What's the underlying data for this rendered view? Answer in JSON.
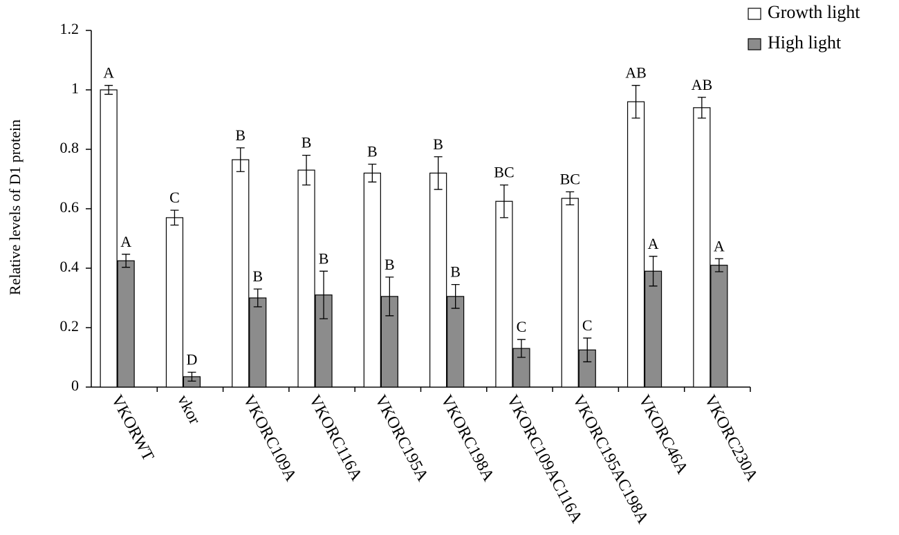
{
  "chart_data": {
    "type": "bar",
    "y_label": "Relative levels of D1 protein",
    "categories": [
      "VKORWT",
      "vkor",
      "VKORC109A",
      "VKORC116A",
      "VKORC195A",
      "VKORC198A",
      "VKORC109AC116A",
      "VKORC195AC198A",
      "VKORC46A",
      "VKORC230A"
    ],
    "series": [
      {
        "name": "Growth light",
        "color": "#ffffff",
        "values": [
          1.0,
          0.57,
          0.765,
          0.73,
          0.72,
          0.72,
          0.625,
          0.635,
          0.96,
          0.94
        ],
        "errors": [
          0.015,
          0.025,
          0.04,
          0.05,
          0.03,
          0.055,
          0.055,
          0.022,
          0.055,
          0.035
        ],
        "significance": [
          "A",
          "C",
          "B",
          "B",
          "B",
          "B",
          "BC",
          "BC",
          "AB",
          "AB"
        ]
      },
      {
        "name": "High light",
        "color": "#8c8c8c",
        "values": [
          0.425,
          0.035,
          0.3,
          0.31,
          0.305,
          0.305,
          0.13,
          0.125,
          0.39,
          0.41
        ],
        "errors": [
          0.022,
          0.015,
          0.03,
          0.08,
          0.065,
          0.04,
          0.03,
          0.04,
          0.05,
          0.022
        ],
        "significance": [
          "A",
          "D",
          "B",
          "B",
          "B",
          "B",
          "C",
          "C",
          "A",
          "A"
        ]
      }
    ],
    "ylim": [
      0,
      1.2
    ],
    "yticks": [
      0,
      0.2,
      0.4,
      0.6,
      0.8,
      1,
      1.2
    ],
    "grid": false,
    "legend": "top-right"
  }
}
